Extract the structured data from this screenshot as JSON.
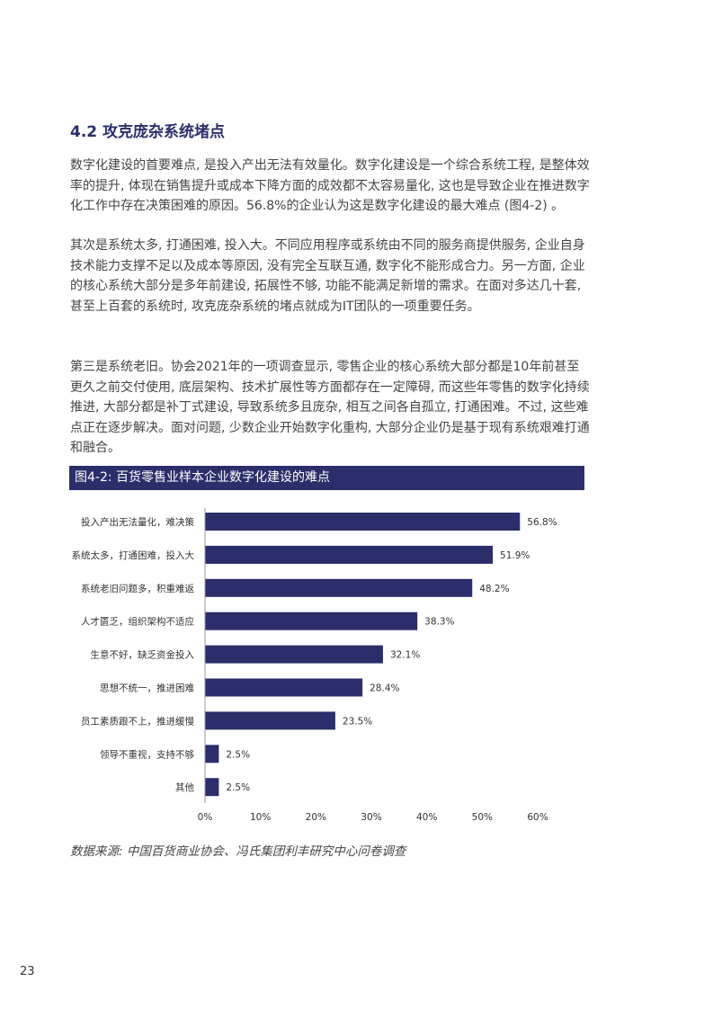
{
  "section_title": "4.2 攻克庞杂系统堵点",
  "paragraphs": [
    "数字化建设的首要难点, 是投入产出无法有效量化。数字化建设是一个综合系统工程, 是整体效率的提升, 体现在销售提升或成本下降方面的成效都不太容易量化, 这也是导致企业在推进数字化工作中存在决策困难的原因。56.8%的企业认为这是数字化建设的最大难点 (图4-2) 。",
    "其次是系统太多, 打通困难, 投入大。不同应用程序或系统由不同的服务商提供服务, 企业自身技术能力支撑不足以及成本等原因, 没有完全互联互通, 数字化不能形成合力。另一方面, 企业的核心系统大部分是多年前建设, 拓展性不够, 功能不能满足新增的需求。在面对多达几十套, 甚至上百套的系统时, 攻克庞杂系统的堵点就成为IT团队的一项重要任务。",
    "第三是系统老旧。协会2021年的一项调查显示, 零售企业的核心系统大部分都是10年前甚至更久之前交付使用, 底层架构、技术扩展性等方面都存在一定障碍, 而这些年零售的数字化持续推进, 大部分都是补丁式建设, 导致系统多且庞杂, 相互之间各自孤立, 打通困难。不过, 这些难点正在逐步解决。面对问题, 少数企业开始数字化重构, 大部分企业仍是基于现有系统艰难打通和融合。"
  ],
  "chart_data": {
    "type": "bar",
    "orientation": "horizontal",
    "title": "图4-2: 百货零售业样本企业数字化建设的难点",
    "categories": [
      "投入产出无法量化，难决策",
      "系统太多，打通困难，投入大",
      "系统老旧问题多，积重难返",
      "人才匮乏，组织架构不适应",
      "生意不好，缺乏资金投入",
      "思想不统一，推进困难",
      "员工素质跟不上，推进缓慢",
      "领导不重视，支持不够",
      "其他"
    ],
    "values": [
      56.8,
      51.9,
      48.2,
      38.3,
      32.1,
      28.4,
      23.5,
      2.5,
      2.5
    ],
    "data_labels": [
      "56.8%",
      "51.9%",
      "48.2%",
      "38.3%",
      "32.1%",
      "28.4%",
      "23.5%",
      "2.5%",
      "2.5%"
    ],
    "xlim": [
      0,
      60
    ],
    "xticks": [
      "0%",
      "10%",
      "20%",
      "30%",
      "40%",
      "50%",
      "60%"
    ],
    "grid": false,
    "bar_color": "#2b2e6a"
  },
  "source": "数据来源: 中国百货商业协会、冯氏集团利丰研究中心问卷调查",
  "page_number": "23"
}
